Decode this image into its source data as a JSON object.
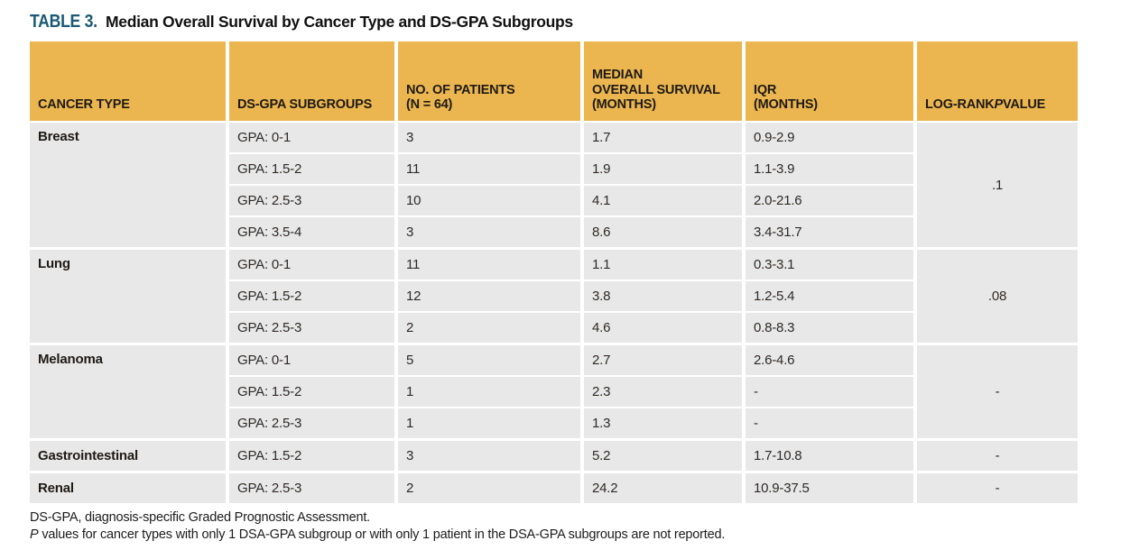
{
  "title": {
    "label": "TABLE 3.",
    "text": "Median Overall Survival by Cancer Type and DS-GPA Subgroups"
  },
  "header": {
    "cancer_type": "CANCER TYPE",
    "subgroups": "DS-GPA SUBGROUPS",
    "patients": "NO. OF PATIENTS\n(N = 64)",
    "median_os": "MEDIAN\nOVERALL SURVIVAL\n(MONTHS)",
    "iqr": "IQR\n(MONTHS)",
    "log_rank_prefix": "LOG-RANK ",
    "log_rank_p": "P",
    "log_rank_suffix": " VALUE"
  },
  "groups": [
    {
      "cancer_type": "Breast",
      "p_value": ".1",
      "rows": [
        {
          "subgroup": "GPA: 0-1",
          "n": "3",
          "median": "1.7",
          "iqr": "0.9-2.9"
        },
        {
          "subgroup": "GPA: 1.5-2",
          "n": "11",
          "median": "1.9",
          "iqr": "1.1-3.9"
        },
        {
          "subgroup": "GPA: 2.5-3",
          "n": "10",
          "median": "4.1",
          "iqr": "2.0-21.6"
        },
        {
          "subgroup": "GPA: 3.5-4",
          "n": "3",
          "median": "8.6",
          "iqr": "3.4-31.7"
        }
      ]
    },
    {
      "cancer_type": "Lung",
      "p_value": ".08",
      "rows": [
        {
          "subgroup": "GPA: 0-1",
          "n": "11",
          "median": "1.1",
          "iqr": "0.3-3.1"
        },
        {
          "subgroup": "GPA: 1.5-2",
          "n": "12",
          "median": "3.8",
          "iqr": "1.2-5.4"
        },
        {
          "subgroup": "GPA: 2.5-3",
          "n": "2",
          "median": "4.6",
          "iqr": "0.8-8.3"
        }
      ]
    },
    {
      "cancer_type": "Melanoma",
      "p_value": "-",
      "rows": [
        {
          "subgroup": "GPA: 0-1",
          "n": "5",
          "median": "2.7",
          "iqr": "2.6-4.6"
        },
        {
          "subgroup": "GPA: 1.5-2",
          "n": "1",
          "median": "2.3",
          "iqr": "-"
        },
        {
          "subgroup": "GPA: 2.5-3",
          "n": "1",
          "median": "1.3",
          "iqr": "-"
        }
      ]
    },
    {
      "cancer_type": "Gastrointestinal",
      "p_value": "-",
      "rows": [
        {
          "subgroup": "GPA: 1.5-2",
          "n": "3",
          "median": "5.2",
          "iqr": "1.7-10.8"
        }
      ]
    },
    {
      "cancer_type": "Renal",
      "p_value": "-",
      "rows": [
        {
          "subgroup": "GPA: 2.5-3",
          "n": "2",
          "median": "24.2",
          "iqr": "10.9-37.5"
        }
      ]
    }
  ],
  "footnotes": {
    "line1": "DS-GPA, diagnosis-specific Graded Prognostic Assessment.",
    "line2_italic": "P",
    "line2_rest": " values for cancer types with only 1 DSA-GPA subgroup or with only 1 patient in the DSA-GPA subgroups are not reported."
  },
  "colors": {
    "header_bg": "#ebb64f",
    "row_bg": "#e8e8e8",
    "title_accent": "#1a5a74"
  }
}
